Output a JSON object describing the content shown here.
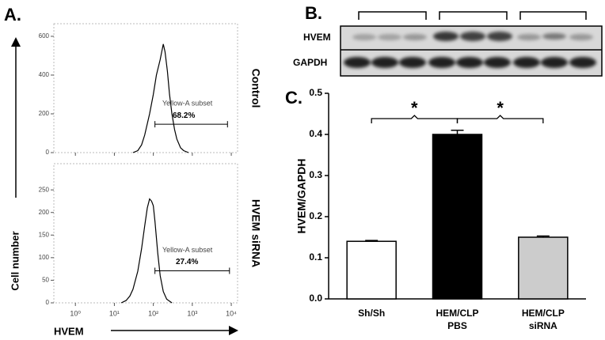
{
  "chart_data": [
    {
      "type": "line",
      "panel": "A.",
      "ylabel": "Cell number",
      "label": "Control",
      "annotation": "Yellow-A subset",
      "gate_label": "68.2%",
      "gate": [
        110,
        8000
      ],
      "x": [
        30,
        40,
        50,
        60,
        80,
        100,
        120,
        150,
        180,
        200,
        230,
        260,
        300,
        350,
        400,
        500,
        600,
        800
      ],
      "values": [
        0,
        10,
        40,
        90,
        200,
        300,
        400,
        480,
        560,
        520,
        420,
        300,
        200,
        120,
        70,
        25,
        10,
        0
      ],
      "color": "#000000",
      "log_x": true,
      "xlim": [
        0.28,
        14500
      ],
      "ylim": [
        0,
        665
      ],
      "xticks": [
        {
          "value": 1,
          "label": "10⁰"
        },
        {
          "value": 10,
          "label": "10¹"
        },
        {
          "value": 100,
          "label": "10²"
        },
        {
          "value": 1000,
          "label": "10³"
        },
        {
          "value": 10000,
          "label": "10⁴"
        }
      ],
      "yticks": [
        0,
        200,
        400,
        600
      ]
    },
    {
      "type": "line",
      "xlabel": "HVEM",
      "label": "HVEM siRNA",
      "annotation": "Yellow-A subset",
      "gate_label": "27.4%",
      "gate": [
        110,
        9000
      ],
      "x": [
        15,
        20,
        25,
        30,
        40,
        50,
        60,
        70,
        80,
        90,
        100,
        110,
        130,
        150,
        180,
        220,
        300
      ],
      "values": [
        0,
        5,
        15,
        30,
        70,
        120,
        170,
        210,
        230,
        225,
        215,
        180,
        110,
        60,
        25,
        8,
        0
      ],
      "color": "#000000",
      "log_x": true,
      "xlim": [
        0.28,
        14500
      ],
      "ylim": [
        0,
        308
      ],
      "xticks": [
        {
          "value": 1,
          "label": "10⁰"
        },
        {
          "value": 10,
          "label": "10¹"
        },
        {
          "value": 100,
          "label": "10²"
        },
        {
          "value": 1000,
          "label": "10³"
        },
        {
          "value": 10000,
          "label": "10⁴"
        }
      ],
      "yticks": [
        0,
        50,
        100,
        150,
        200,
        250
      ]
    },
    {
      "type": "bar",
      "panel": "C.",
      "ylabel": "HVEM/GAPDH",
      "categories": [
        [
          "Sh/Sh"
        ],
        [
          "HEM/CLP",
          "PBS"
        ],
        [
          "HEM/CLP",
          "siRNA"
        ]
      ],
      "values": [
        0.14,
        0.4,
        0.15
      ],
      "errors": [
        0.002,
        0.01,
        0.003
      ],
      "colors": [
        "#ffffff",
        "#000000",
        "#cccccc"
      ],
      "ylim": [
        0,
        0.5
      ],
      "yticks": [
        {
          "value": 0,
          "label": "0.0"
        },
        0.1,
        0.2,
        0.3,
        0.4,
        0.5
      ],
      "significance": [
        {
          "from": 0,
          "to": 1,
          "label": "*"
        },
        {
          "from": 1,
          "to": 2,
          "label": "*"
        }
      ]
    }
  ],
  "blot": {
    "panel": "B.",
    "rows": [
      "HVEM",
      "GAPDH"
    ]
  }
}
